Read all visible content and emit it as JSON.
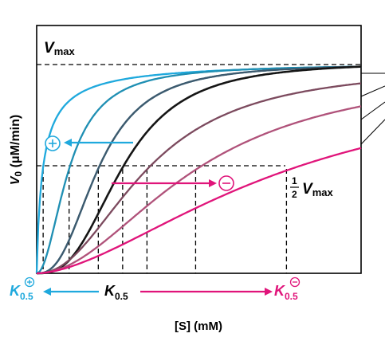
{
  "chart_data": {
    "type": "line",
    "title": "",
    "xlabel": "[S] (mM)",
    "ylabel": "V₀ (μM/min)",
    "xlim": [
      0,
      1
    ],
    "ylim": [
      0,
      1
    ],
    "grid": false,
    "vmax_label": "Vmax",
    "half_vmax_label": "Vmax",
    "half_fraction": "1/2",
    "k05_label": "K0.5",
    "k05_activated_label": "K0.5",
    "k05_inhibited_label": "K0.5",
    "activator_symbol": "⊕",
    "inhibitor_symbol": "⊖",
    "vmax": 1.0,
    "half_vmax": 0.5,
    "k05_activated": 0.02,
    "k05": 0.265,
    "k05_inhibited": 0.77,
    "half_crossings_x": [
      0.02,
      0.1,
      0.19,
      0.265,
      0.34,
      0.49,
      0.77
    ],
    "series": [
      {
        "color": "#1fa9dd",
        "K": 0.02,
        "n": 0.9,
        "x": [
          0,
          0.005,
          0.01,
          0.02,
          0.04,
          0.08,
          0.15,
          0.3,
          0.5,
          1.0
        ],
        "y": [
          0,
          0.25,
          0.36,
          0.5,
          0.67,
          0.8,
          0.88,
          0.94,
          0.97,
          0.99
        ]
      },
      {
        "color": "#1f8fb3",
        "K": 0.1,
        "n": 2.0,
        "x": [
          0,
          0.03,
          0.06,
          0.1,
          0.15,
          0.2,
          0.3,
          0.5,
          1.0
        ],
        "y": [
          0,
          0.08,
          0.26,
          0.5,
          0.69,
          0.8,
          0.9,
          0.96,
          0.99
        ]
      },
      {
        "color": "#2a6f8c",
        "K": 0.19,
        "n": 2.6,
        "x": [
          0,
          0.05,
          0.1,
          0.15,
          0.19,
          0.25,
          0.35,
          0.5,
          1.0
        ],
        "y": [
          0,
          0.03,
          0.16,
          0.35,
          0.5,
          0.67,
          0.83,
          0.92,
          0.99
        ]
      },
      {
        "color": "#3d5a6e",
        "K": 0.19,
        "n": 2.6,
        "x": [
          0,
          0.05,
          0.1,
          0.15,
          0.19,
          0.25,
          0.35,
          0.5,
          1.0
        ],
        "y": [
          0,
          0.03,
          0.16,
          0.35,
          0.5,
          0.67,
          0.83,
          0.92,
          0.99
        ]
      },
      {
        "color": "#151515",
        "K": 0.265,
        "n": 2.8,
        "x": [
          0,
          0.1,
          0.2,
          0.265,
          0.35,
          0.5,
          0.7,
          1.0
        ],
        "y": [
          0,
          0.06,
          0.31,
          0.5,
          0.69,
          0.86,
          0.95,
          0.99
        ]
      },
      {
        "color": "#7c4a5e",
        "K": 0.34,
        "n": 2.2,
        "x": [
          0,
          0.1,
          0.2,
          0.34,
          0.5,
          0.7,
          0.85,
          1.0
        ],
        "y": [
          0,
          0.07,
          0.24,
          0.5,
          0.7,
          0.83,
          0.88,
          0.91
        ]
      },
      {
        "color": "#b0527a",
        "K": 0.49,
        "n": 2.0,
        "x": [
          0,
          0.1,
          0.25,
          0.49,
          0.65,
          0.8,
          1.0
        ],
        "y": [
          0,
          0.04,
          0.2,
          0.5,
          0.64,
          0.73,
          0.8
        ]
      },
      {
        "color": "#e0147a",
        "K": 0.77,
        "n": 1.7,
        "x": [
          0,
          0.15,
          0.3,
          0.5,
          0.77,
          0.9,
          1.0
        ],
        "y": [
          0,
          0.06,
          0.18,
          0.32,
          0.5,
          0.56,
          0.6
        ]
      }
    ]
  },
  "colors": {
    "activator": "#1fa9dd",
    "inhibitor": "#e0147a",
    "axis": "#000000"
  }
}
